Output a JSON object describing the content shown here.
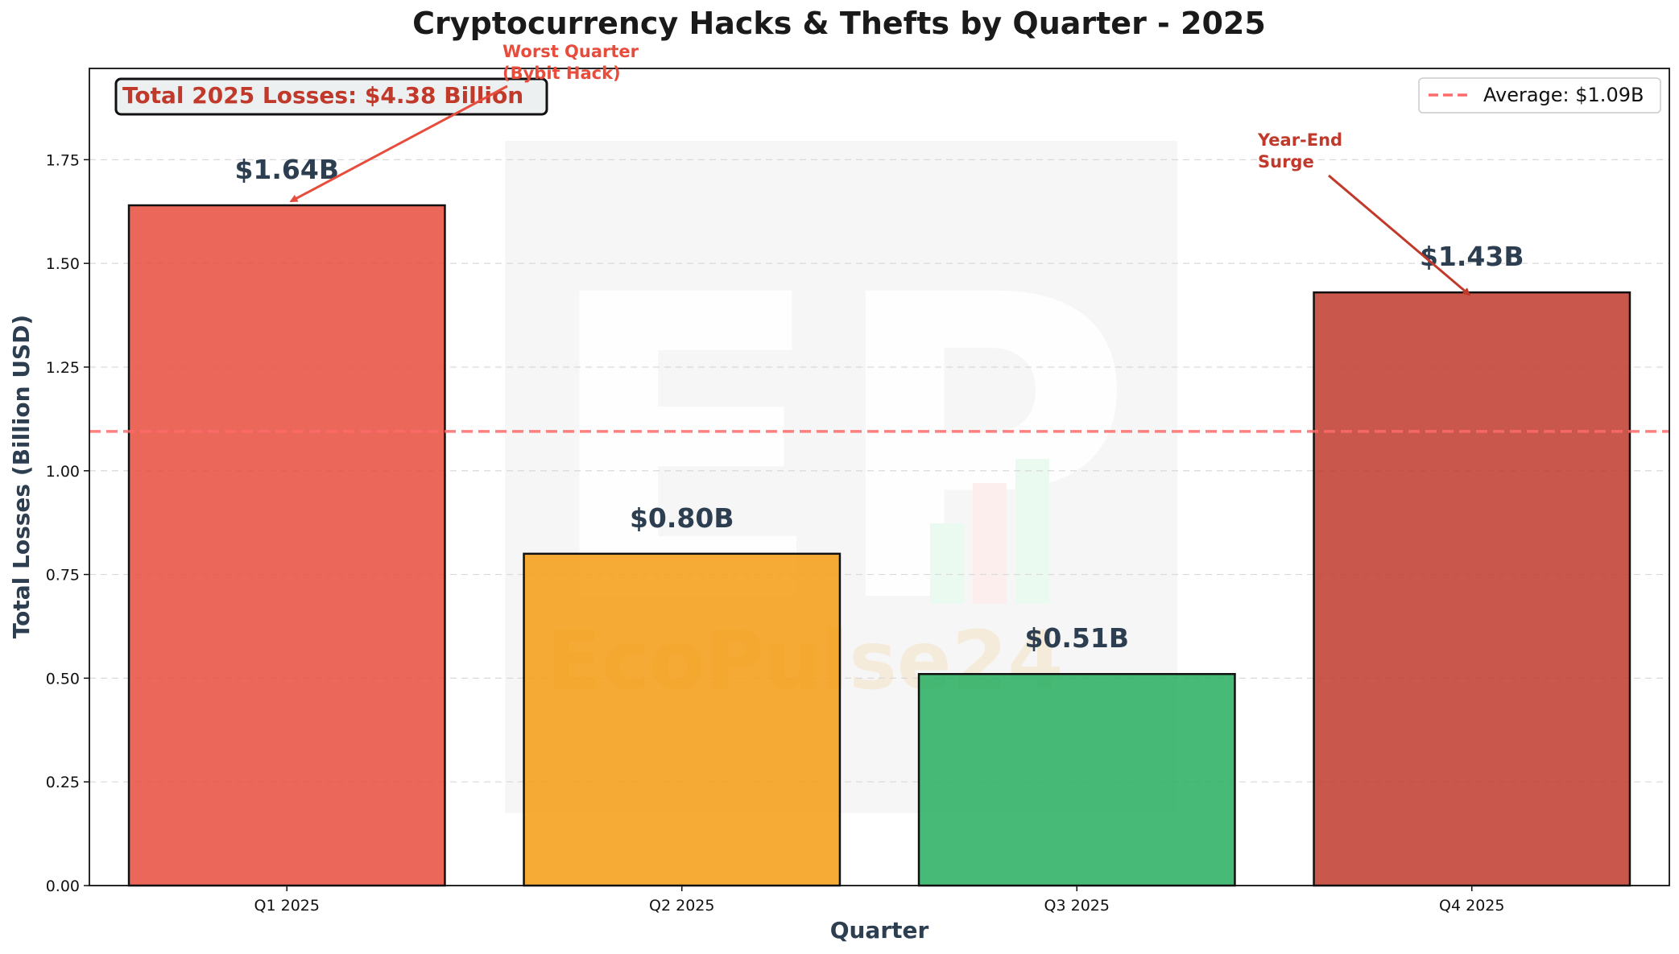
{
  "chart_data": {
    "type": "bar",
    "title": "Cryptocurrency Hacks & Thefts by Quarter - 2025",
    "xlabel": "Quarter",
    "ylabel": "Total Losses (Billion USD)",
    "categories": [
      "Q1 2025",
      "Q2 2025",
      "Q3 2025",
      "Q4 2025"
    ],
    "values": [
      1.64,
      0.8,
      0.51,
      1.43
    ],
    "value_labels": [
      "$1.64B",
      "$0.80B",
      "$0.51B",
      "$1.43B"
    ],
    "bar_colors": [
      "#e74c3c",
      "#f39c12",
      "#27ae60",
      "#c0392b"
    ],
    "ylim": [
      0,
      1.97
    ],
    "yticks": [
      0.0,
      0.25,
      0.5,
      0.75,
      1.0,
      1.25,
      1.5,
      1.75
    ],
    "ytick_labels": [
      "0.00",
      "0.25",
      "0.50",
      "0.75",
      "1.00",
      "1.25",
      "1.50",
      "1.75"
    ],
    "grid": "y-dashed",
    "average": {
      "value": 1.095,
      "label": "Average: $1.09B",
      "color": "#ff6b6b"
    },
    "legend": {
      "position": "top-right",
      "entries": [
        "Average: $1.09B"
      ]
    },
    "total_box": {
      "text": "Total 2025 Losses: $4.38 Billion",
      "position": "top-left"
    },
    "annotations": [
      {
        "lines": [
          "Worst Quarter",
          "(Bybit Hack)"
        ],
        "target_category": "Q1 2025",
        "target_value": 1.64,
        "color": "#e74c3c"
      },
      {
        "lines": [
          "Year-End",
          "Surge"
        ],
        "target_category": "Q4 2025",
        "target_value": 1.43,
        "color": "#c0392b"
      }
    ],
    "watermark": {
      "text": "EcoPulse24",
      "logo": "EP"
    }
  }
}
